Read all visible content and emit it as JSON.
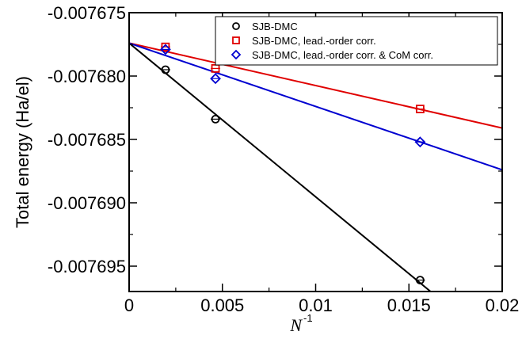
{
  "chart_data": {
    "type": "scatter",
    "title": "",
    "xlabel": "N",
    "xlabel_superscript": "-1",
    "ylabel": "Total energy (Ha/el)",
    "xlim": [
      0,
      0.02
    ],
    "ylim": [
      -0.007697,
      -0.007675
    ],
    "x_ticks": [
      0,
      0.005,
      0.01,
      0.015,
      0.02
    ],
    "x_tick_labels": [
      "0",
      "0.005",
      "0.01",
      "0.015",
      "0.02"
    ],
    "y_ticks": [
      -0.007675,
      -0.00768,
      -0.007685,
      -0.00769,
      -0.007695
    ],
    "y_tick_labels": [
      "-0.007675",
      "-0.007680",
      "-0.007685",
      "-0.007690",
      "-0.007695"
    ],
    "grid": false,
    "legend_position": "top-right",
    "series": [
      {
        "name": "SJB-DMC",
        "color": "#000000",
        "marker": "circle",
        "x": [
          0.00195,
          0.00463,
          0.0156
        ],
        "y": [
          -0.0076795,
          -0.0076834,
          -0.0076961
        ],
        "fit": {
          "intercept": -0.0076774,
          "slope": -0.001213
        }
      },
      {
        "name": "SJB-DMC, lead.-order corr.",
        "color": "#e00000",
        "marker": "square",
        "x": [
          0.00195,
          0.00463,
          0.0156
        ],
        "y": [
          -0.0076777,
          -0.0076794,
          -0.0076826
        ],
        "fit": {
          "intercept": -0.0076774,
          "slope": -0.000335
        }
      },
      {
        "name": "SJB-DMC, lead.-order corr. & CoM corr.",
        "color": "#0000d0",
        "marker": "diamond",
        "x": [
          0.00195,
          0.00463,
          0.0156
        ],
        "y": [
          -0.0076779,
          -0.0076802,
          -0.0076852
        ],
        "fit": {
          "intercept": -0.0076774,
          "slope": -0.0005
        }
      }
    ]
  }
}
